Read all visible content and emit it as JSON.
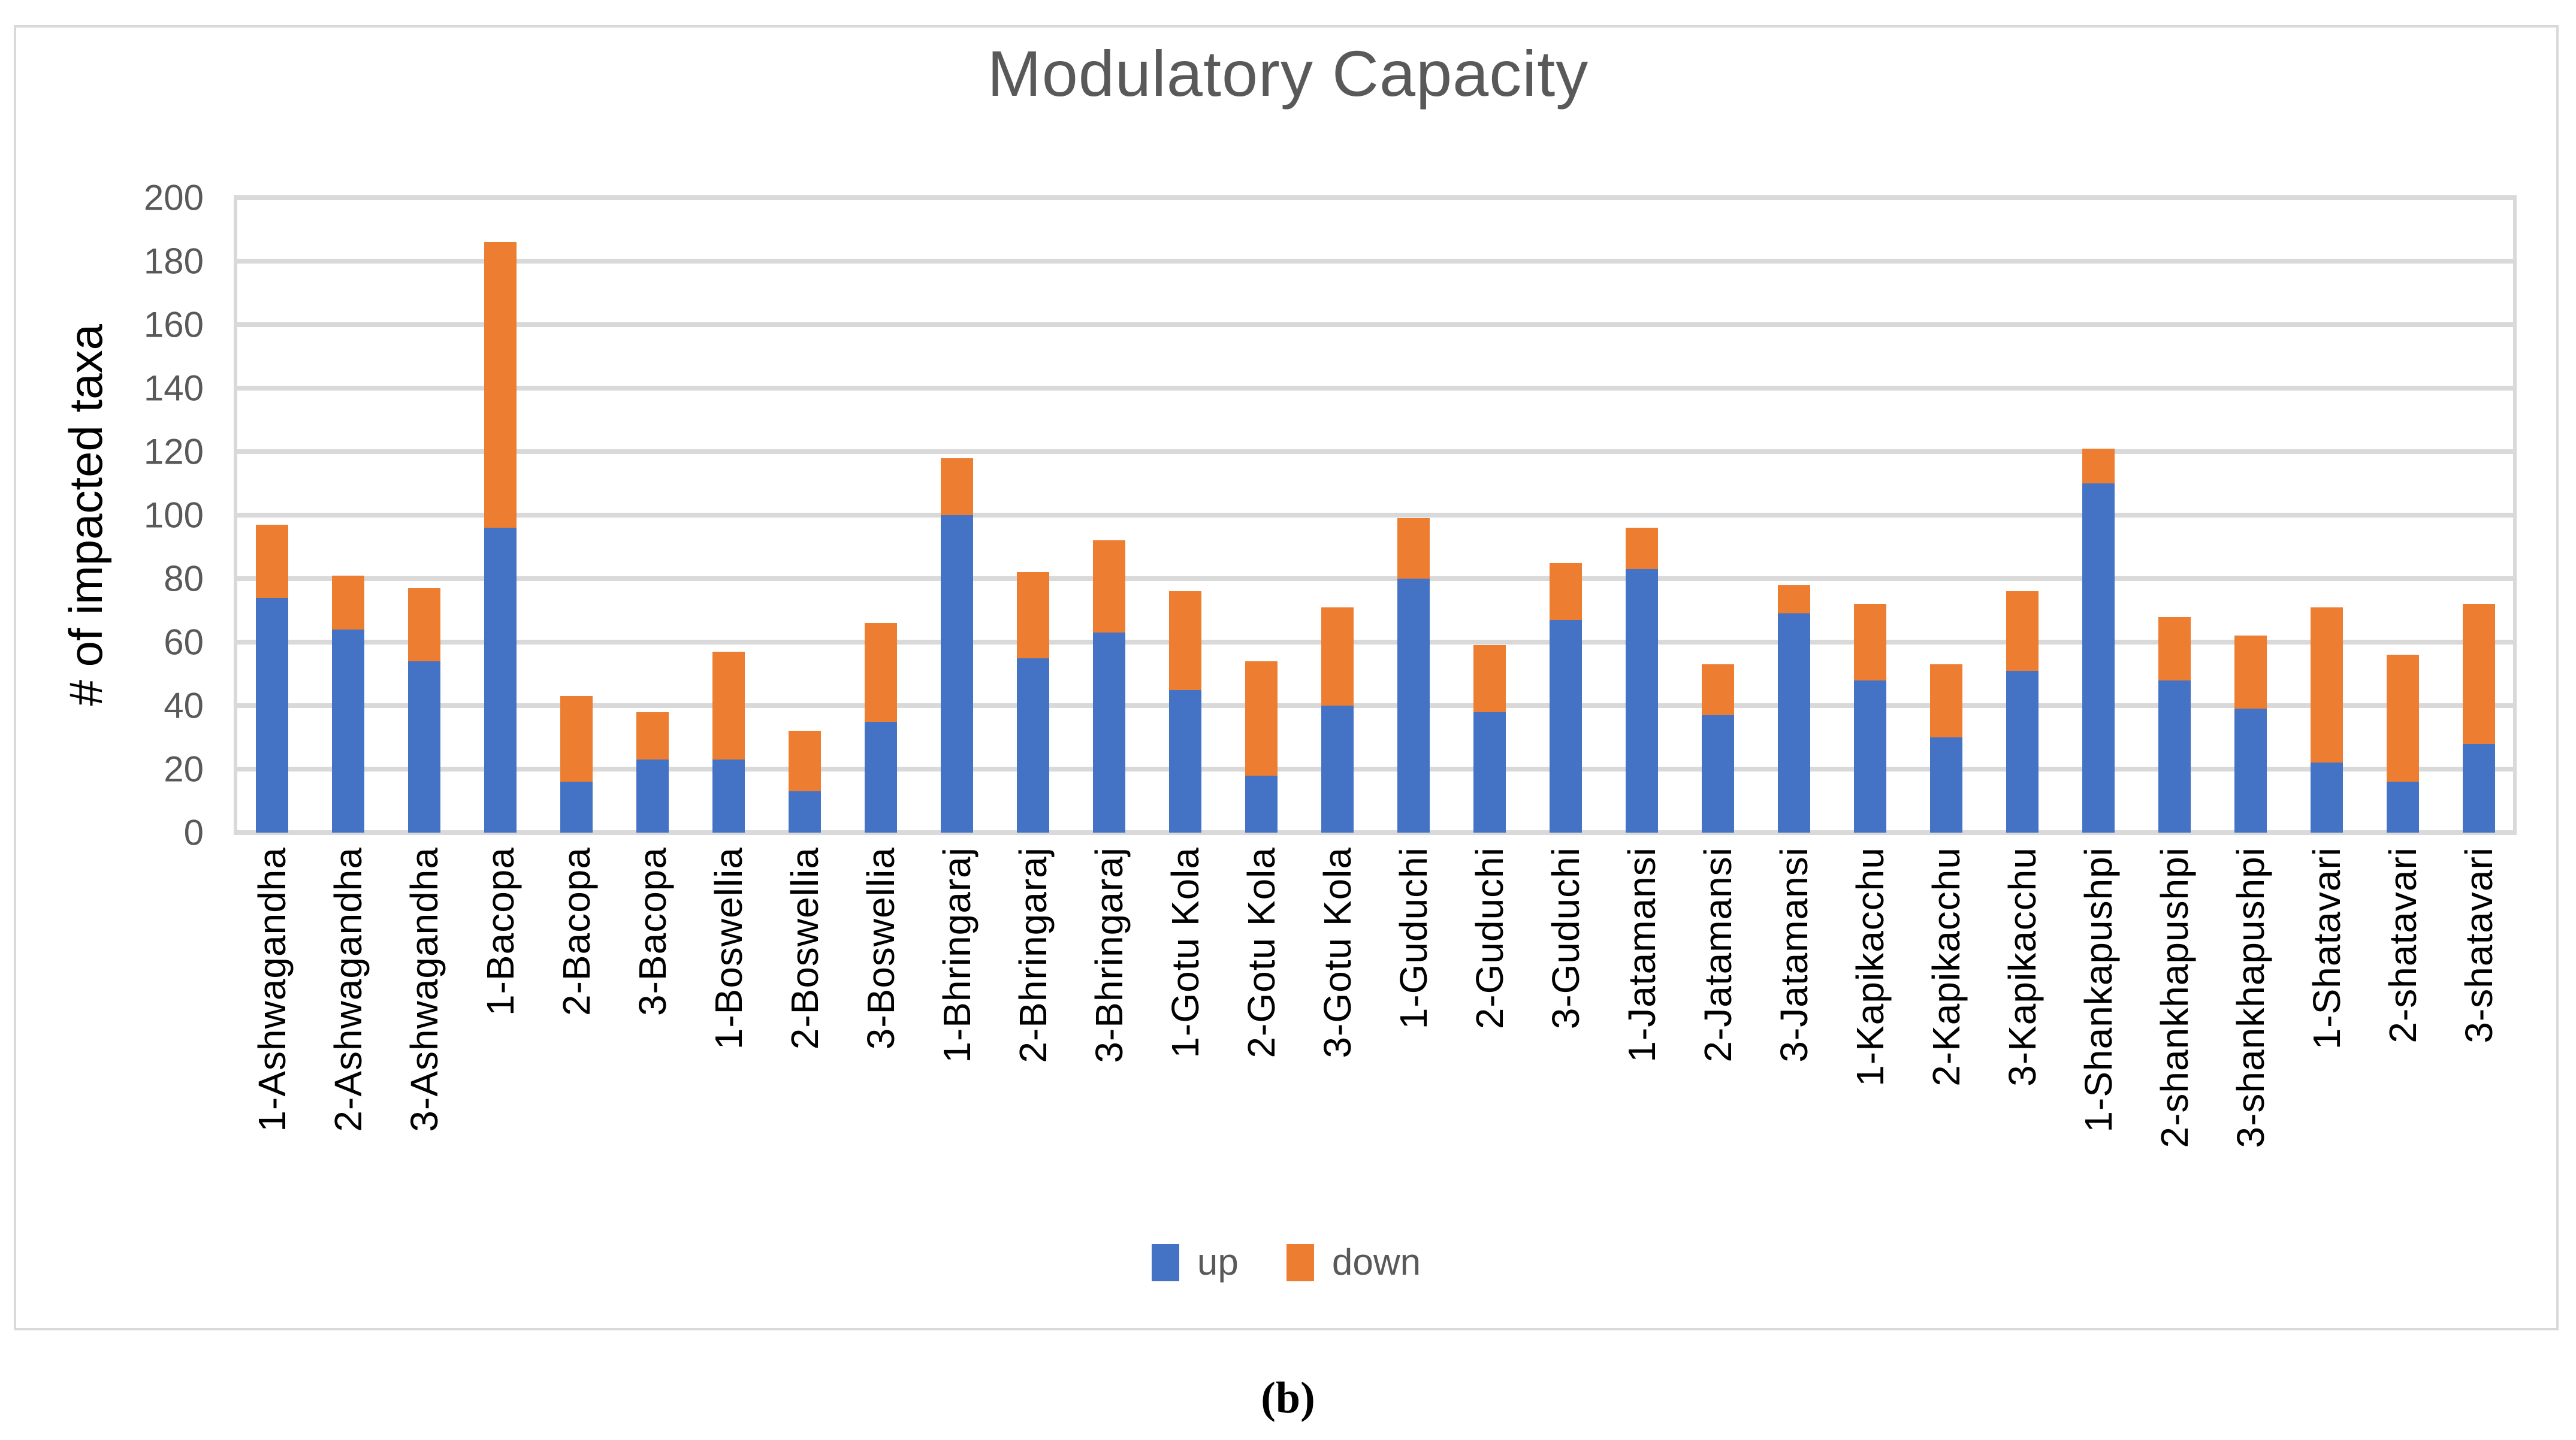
{
  "figure": {
    "caption": "(b)"
  },
  "chart_data": {
    "type": "bar",
    "stacked": true,
    "title": "Modulatory Capacity",
    "xlabel": "",
    "ylabel": "# of impacted taxa",
    "ylim": [
      0,
      200
    ],
    "ytick_step": 20,
    "grid": true,
    "legend_position": "bottom",
    "categories": [
      "1-Ashwagandha",
      "2-Ashwagandha",
      "3-Ashwagandha",
      "1-Bacopa",
      "2-Bacopa",
      "3-Bacopa",
      "1-Boswellia",
      "2-Boswellia",
      "3-Boswellia",
      "1-Bhringaraj",
      "2-Bhringaraj",
      "3-Bhringaraj",
      "1-Gotu Kola",
      "2-Gotu Kola",
      "3-Gotu Kola",
      "1-Guduchi",
      "2-Guduchi",
      "3-Guduchi",
      "1-Jatamansi",
      "2-Jatamansi",
      "3-Jatamansi",
      "1-Kapikacchu",
      "2-Kapikacchu",
      "3-Kapikacchu",
      "1-Shankapushpi",
      "2-shankhapushpi",
      "3-shankhapushpi",
      "1-Shatavari",
      "2-shatavari",
      "3-shatavari"
    ],
    "series": [
      {
        "name": "up",
        "color": "#4472C4",
        "values": [
          74,
          64,
          54,
          96,
          16,
          23,
          23,
          13,
          35,
          100,
          55,
          63,
          45,
          18,
          40,
          80,
          38,
          67,
          83,
          37,
          69,
          48,
          30,
          51,
          110,
          48,
          39,
          22,
          16,
          28
        ]
      },
      {
        "name": "down",
        "color": "#ED7D31",
        "values": [
          23,
          17,
          23,
          90,
          27,
          15,
          34,
          19,
          31,
          18,
          27,
          29,
          31,
          36,
          31,
          19,
          21,
          18,
          13,
          16,
          9,
          24,
          23,
          25,
          11,
          20,
          23,
          49,
          40,
          44
        ]
      }
    ],
    "stacked_totals": [
      97,
      81,
      77,
      186,
      43,
      38,
      57,
      32,
      66,
      118,
      82,
      92,
      76,
      54,
      71,
      99,
      59,
      85,
      96,
      53,
      78,
      72,
      53,
      76,
      121,
      68,
      62,
      71,
      56,
      72
    ]
  },
  "colors": {
    "up": "#4472C4",
    "down": "#ED7D31",
    "gridline": "#D9D9D9",
    "frame_border": "#D9D9D9",
    "axis_tick_text": "#595959",
    "title_text": "#595959",
    "category_text": "#000000",
    "legend_text": "#595959",
    "background": "#FFFFFF"
  }
}
